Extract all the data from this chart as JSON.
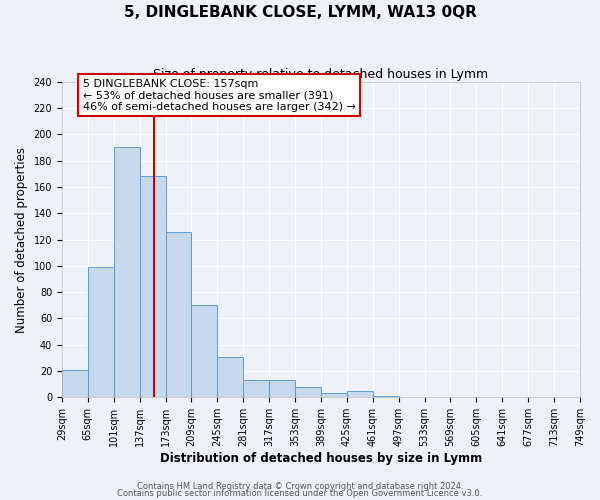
{
  "title": "5, DINGLEBANK CLOSE, LYMM, WA13 0QR",
  "subtitle": "Size of property relative to detached houses in Lymm",
  "xlabel": "Distribution of detached houses by size in Lymm",
  "ylabel": "Number of detached properties",
  "bin_labels": [
    "29sqm",
    "65sqm",
    "101sqm",
    "137sqm",
    "173sqm",
    "209sqm",
    "245sqm",
    "281sqm",
    "317sqm",
    "353sqm",
    "389sqm",
    "425sqm",
    "461sqm",
    "497sqm",
    "533sqm",
    "569sqm",
    "605sqm",
    "641sqm",
    "677sqm",
    "713sqm",
    "749sqm"
  ],
  "bin_edges": [
    29,
    65,
    101,
    137,
    173,
    209,
    245,
    281,
    317,
    353,
    389,
    425,
    461,
    497,
    533,
    569,
    605,
    641,
    677,
    713,
    749
  ],
  "bar_heights": [
    21,
    99,
    190,
    168,
    126,
    70,
    31,
    13,
    13,
    8,
    3,
    5,
    1,
    0,
    0,
    0,
    0,
    0,
    0,
    0
  ],
  "bar_color": "#c9d9ed",
  "bar_edge_color": "#5b9bd5",
  "property_line_x": 157,
  "property_line_color": "#cc0000",
  "annotation_line1": "5 DINGLEBANK CLOSE: 157sqm",
  "annotation_line2": "← 53% of detached houses are smaller (391)",
  "annotation_line3": "46% of semi-detached houses are larger (342) →",
  "ylim": [
    0,
    240
  ],
  "yticks": [
    0,
    20,
    40,
    60,
    80,
    100,
    120,
    140,
    160,
    180,
    200,
    220,
    240
  ],
  "footnote1": "Contains HM Land Registry data © Crown copyright and database right 2024.",
  "footnote2": "Contains public sector information licensed under the Open Government Licence v3.0.",
  "background_color": "#eef2f8",
  "grid_color": "#ffffff",
  "title_fontsize": 11,
  "subtitle_fontsize": 9,
  "axis_label_fontsize": 8.5,
  "tick_fontsize": 7,
  "annotation_fontsize": 8,
  "footnote_fontsize": 6
}
